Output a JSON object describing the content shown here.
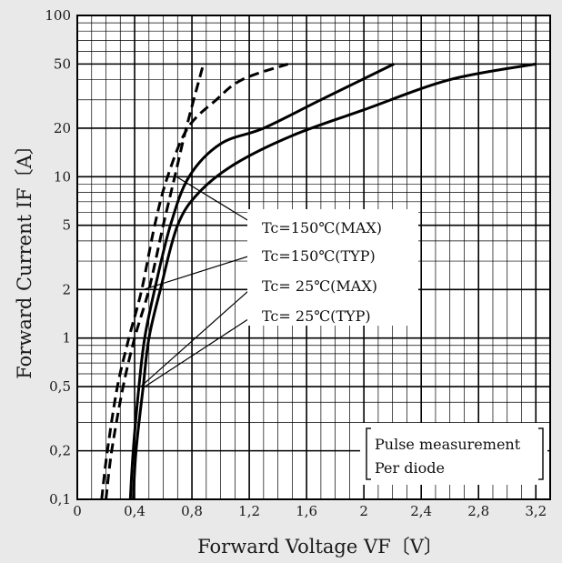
{
  "chart_data": {
    "type": "line",
    "title": "",
    "xlabel": "Forward Voltage  VF〔V〕",
    "ylabel": "Forward Current  IF〔A〕",
    "x_scale": "linear",
    "y_scale": "log",
    "xlim": [
      0,
      3.3
    ],
    "ylim": [
      0.1,
      100
    ],
    "grid": true,
    "x_ticks": [
      "0",
      "0,4",
      "0,8",
      "1,2",
      "1,6",
      "2",
      "2,4",
      "2,8",
      "3,2"
    ],
    "x_tick_values": [
      0,
      0.4,
      0.8,
      1.2,
      1.6,
      2.0,
      2.4,
      2.8,
      3.2
    ],
    "y_ticks": [
      "0,1",
      "0,2",
      "0,5",
      "1",
      "2",
      "5",
      "10",
      "20",
      "50",
      "100"
    ],
    "y_tick_values": [
      0.1,
      0.2,
      0.5,
      1,
      2,
      5,
      10,
      20,
      50,
      100
    ],
    "series": [
      {
        "name": "Tc=150℃(MAX)",
        "style": "dashed",
        "points": [
          [
            0.2,
            0.1
          ],
          [
            0.24,
            0.2
          ],
          [
            0.32,
            0.5
          ],
          [
            0.4,
            1
          ],
          [
            0.5,
            2
          ],
          [
            0.6,
            5
          ],
          [
            0.68,
            10
          ],
          [
            0.76,
            20
          ],
          [
            0.88,
            50
          ]
        ]
      },
      {
        "name": "Tc=150℃(TYP)",
        "style": "dashed",
        "points": [
          [
            0.17,
            0.1
          ],
          [
            0.21,
            0.2
          ],
          [
            0.28,
            0.5
          ],
          [
            0.36,
            1
          ],
          [
            0.45,
            2
          ],
          [
            0.54,
            5
          ],
          [
            0.63,
            10
          ],
          [
            0.77,
            20
          ],
          [
            0.97,
            30
          ],
          [
            1.15,
            40
          ],
          [
            1.47,
            50
          ]
        ]
      },
      {
        "name": "Tc= 25℃(MAX)",
        "style": "solid",
        "points": [
          [
            0.37,
            0.1
          ],
          [
            0.39,
            0.2
          ],
          [
            0.43,
            0.5
          ],
          [
            0.47,
            1
          ],
          [
            0.54,
            2
          ],
          [
            0.65,
            5
          ],
          [
            0.78,
            10
          ],
          [
            1.0,
            16
          ],
          [
            1.3,
            20
          ],
          [
            1.7,
            30
          ],
          [
            2.21,
            50
          ]
        ]
      },
      {
        "name": "Tc= 25℃(TYP)",
        "style": "solid",
        "points": [
          [
            0.39,
            0.1
          ],
          [
            0.41,
            0.2
          ],
          [
            0.46,
            0.5
          ],
          [
            0.5,
            1
          ],
          [
            0.58,
            2
          ],
          [
            0.7,
            5
          ],
          [
            0.85,
            8
          ],
          [
            1.1,
            12
          ],
          [
            1.5,
            18
          ],
          [
            2.0,
            26
          ],
          [
            2.6,
            40
          ],
          [
            3.2,
            50
          ]
        ]
      }
    ],
    "annotations": [
      "Pulse measurement",
      "Per diode"
    ]
  }
}
